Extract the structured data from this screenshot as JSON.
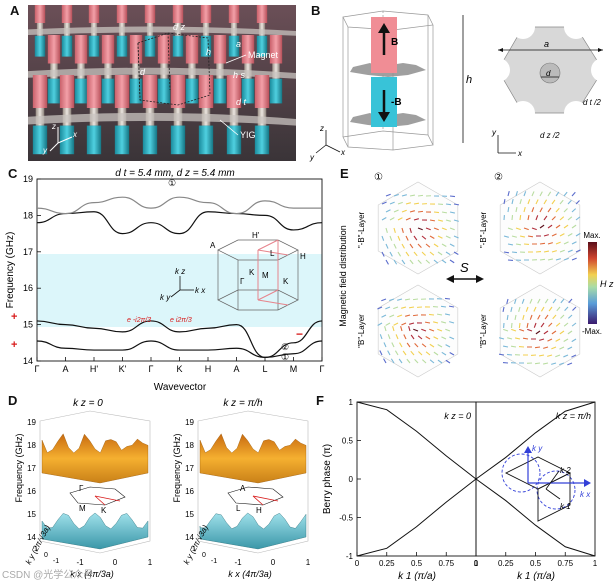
{
  "panels": {
    "A": "A",
    "B": "B",
    "C": "C",
    "D": "D",
    "E": "E",
    "F": "F"
  },
  "panel_a": {
    "labels": {
      "dz": "d z",
      "h": "h",
      "magnet": "Magnet",
      "a": "a",
      "d": "d",
      "hs": "h s",
      "dt": "d t",
      "yig": "YIG",
      "ax_z": "z",
      "ax_x": "x",
      "ax_y": "y"
    }
  },
  "panel_b": {
    "label_B": "B",
    "label_negB": "-B",
    "label_h": "h",
    "label_a": "a",
    "label_d": "d",
    "label_dt2": "d t /2",
    "label_dz2": "d z /2",
    "ax_z": "z",
    "ax_x": "x",
    "ax_y": "y"
  },
  "panel_c": {
    "title": "d t = 5.4 mm, d z = 5.4 mm",
    "ylabel": "Frequency (GHz)",
    "xlabel": "Wavevector",
    "yticks": [
      "19",
      "18",
      "17",
      "16",
      "15",
      "14"
    ],
    "xticks": [
      "Γ",
      "A",
      "H'",
      "K'",
      "Γ",
      "K",
      "H",
      "A",
      "L",
      "M",
      "Γ"
    ],
    "band_labels": {
      "e_minus": "e -i2π/3",
      "e_plus": "e i2π/3",
      "circ1": "①",
      "circ2": "②"
    },
    "signs": {
      "plus_top": "+",
      "plus_bottom": "+",
      "minus_right": "−"
    },
    "bz_labels": {
      "A": "A",
      "Hp": "H'",
      "L": "L",
      "H": "H",
      "K": "K",
      "M": "M",
      "G": "Γ",
      "Kp": "K",
      "kz": "k z",
      "ky": "k y",
      "kx": "k x"
    }
  },
  "panel_d": {
    "left_title": "k z = 0",
    "right_title": "k z = π/h",
    "zlabel": "Frequency (GHz)",
    "zticks": [
      "19",
      "18",
      "17",
      "16",
      "15",
      "14"
    ],
    "xlabel": "k x (4π/3a)",
    "ylabel": "k y (2π/√3a)",
    "xticks": [
      "-1",
      "0",
      "1"
    ],
    "yticks": [
      "1",
      "0",
      "-1"
    ],
    "left_bz": {
      "G": "Γ",
      "M": "M",
      "K": "K"
    },
    "right_bz": {
      "A": "A",
      "L": "L",
      "H": "H"
    }
  },
  "panel_e": {
    "ylabel": "Magnetic field distribution",
    "circ1": "①",
    "circ2": "②",
    "layer_top_left": "\"-B\"-Layer",
    "layer_bottom_left": "\"B\"-Layer",
    "layer_top_right": "\"-B\"-Layer",
    "layer_bottom_right": "\"B\"-Layer",
    "operator": "S",
    "cbar_max": "Max.",
    "cbar_min": "-Max.",
    "cbar_label": "H z"
  },
  "panel_f": {
    "ylabel": "Berry phase (π)",
    "left_title": "k z = 0",
    "right_title": "k z = π/h",
    "xlabel": "k 1 (π/a)",
    "yticks": [
      "1",
      "0.5",
      "0",
      "-0.5",
      "-1"
    ],
    "xticks": [
      "0",
      "0.25",
      "0.5",
      "0.75",
      "1"
    ],
    "inset": {
      "k1": "k 1",
      "k2": "k 2",
      "kx": "k x",
      "ky": "k y"
    }
  },
  "watermark": "CSDN @光学公众号",
  "colors": {
    "band_gap": "#dcf6fa",
    "magnet_pink": "#e8868f",
    "yig_cyan": "#2fb6c9",
    "surface_orange": "#f0a020",
    "surface_cyan": "#6cc6d2",
    "inset_blue": "#3340d8",
    "red_mark": "#d81b1b"
  },
  "chart_data": [
    {
      "type": "line",
      "title": "d t = 5.4 mm, d z = 5.4 mm",
      "xlabel": "Wavevector",
      "ylabel": "Frequency (GHz)",
      "ylim": [
        14,
        19
      ],
      "categories": [
        "Γ",
        "A",
        "H'",
        "K'",
        "Γ",
        "K",
        "H",
        "A",
        "L",
        "M",
        "Γ"
      ],
      "band_gap": [
        15.25,
        17.0
      ],
      "series": [
        {
          "name": "band 1",
          "values": [
            14.55,
            14.35,
            14.3,
            14.3,
            14.55,
            14.3,
            14.3,
            14.35,
            14.1,
            14.2,
            14.55
          ]
        },
        {
          "name": "band 2",
          "values": [
            15.1,
            15.0,
            14.9,
            14.8,
            15.1,
            14.8,
            14.9,
            15.0,
            14.1,
            14.5,
            15.1
          ]
        },
        {
          "name": "band 3",
          "values": [
            17.8,
            18.05,
            18.1,
            17.5,
            17.8,
            17.5,
            18.1,
            18.05,
            18.0,
            17.6,
            17.8
          ]
        },
        {
          "name": "band 4",
          "values": [
            18.2,
            18.05,
            18.35,
            18.5,
            18.2,
            18.5,
            18.35,
            18.05,
            18.4,
            18.2,
            18.2
          ]
        }
      ]
    },
    {
      "type": "line",
      "title": "k z = 0",
      "xlabel": "k 1 (π/a)",
      "ylabel": "Berry phase (π)",
      "ylim": [
        -1,
        1
      ],
      "x": [
        0,
        0.25,
        0.5,
        0.75,
        1
      ],
      "series": [
        {
          "name": "upper",
          "values": [
            1,
            0.9,
            0.62,
            0.3,
            0
          ]
        },
        {
          "name": "lower",
          "values": [
            -1,
            -0.9,
            -0.62,
            -0.3,
            0
          ]
        }
      ]
    },
    {
      "type": "line",
      "title": "k z = π/h",
      "xlabel": "k 1 (π/a)",
      "ylabel": "Berry phase (π)",
      "ylim": [
        -1,
        1
      ],
      "x": [
        0,
        0.25,
        0.5,
        0.75,
        1
      ],
      "series": [
        {
          "name": "upper",
          "values": [
            0,
            0.28,
            0.6,
            0.88,
            1
          ]
        },
        {
          "name": "lower",
          "values": [
            0,
            -0.28,
            -0.6,
            -0.88,
            -1
          ]
        }
      ]
    }
  ]
}
